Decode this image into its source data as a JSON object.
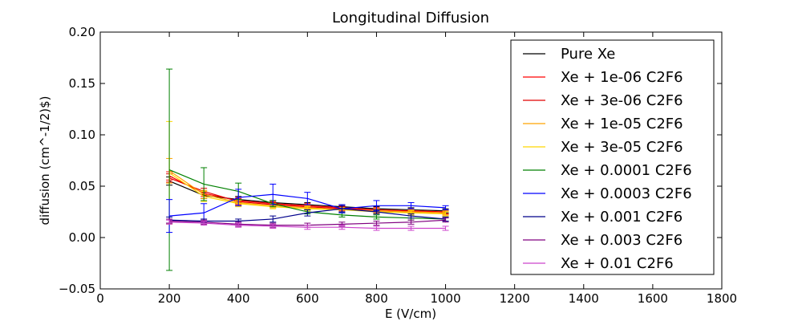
{
  "chart_data": {
    "type": "line",
    "title": "Longitudinal Diffusion",
    "xlabel": "E (V/cm)",
    "ylabel": "diffusion (cm^-1/2)$)",
    "xlim": [
      0,
      1800
    ],
    "ylim": [
      -0.05,
      0.2
    ],
    "xticks": [
      0,
      200,
      400,
      600,
      800,
      1000,
      1200,
      1400,
      1600,
      1800
    ],
    "yticks": [
      -0.05,
      0.0,
      0.05,
      0.1,
      0.15,
      0.2
    ],
    "xtick_labels": [
      "0",
      "200",
      "400",
      "600",
      "800",
      "1000",
      "1200",
      "1400",
      "1600",
      "1800"
    ],
    "ytick_labels": [
      "−0.05",
      "0.00",
      "0.05",
      "0.10",
      "0.15",
      "0.20"
    ],
    "grid": false,
    "legend_position": "upper-right",
    "x": [
      200,
      300,
      400,
      500,
      600,
      700,
      800,
      900,
      1000
    ],
    "series": [
      {
        "name": "Pure Xe",
        "color": "#000000",
        "values": [
          0.055,
          0.041,
          0.037,
          0.034,
          0.032,
          0.03,
          0.028,
          0.027,
          0.026
        ],
        "errors": [
          0.004,
          0.003,
          0.003,
          0.002,
          0.002,
          0.002,
          0.002,
          0.002,
          0.002
        ]
      },
      {
        "name": "Xe + 1e-06 C2F6",
        "color": "#ff0000",
        "values": [
          0.06,
          0.043,
          0.036,
          0.033,
          0.031,
          0.029,
          0.027,
          0.026,
          0.025
        ],
        "errors": [
          0.004,
          0.003,
          0.003,
          0.002,
          0.002,
          0.002,
          0.002,
          0.002,
          0.002
        ]
      },
      {
        "name": "Xe + 3e-06 C2F6",
        "color": "#e00000",
        "values": [
          0.058,
          0.045,
          0.035,
          0.032,
          0.03,
          0.028,
          0.026,
          0.025,
          0.024
        ],
        "errors": [
          0.004,
          0.003,
          0.003,
          0.002,
          0.002,
          0.002,
          0.002,
          0.002,
          0.002
        ]
      },
      {
        "name": "Xe + 1e-05 C2F6",
        "color": "#ffa500",
        "values": [
          0.065,
          0.042,
          0.034,
          0.031,
          0.029,
          0.027,
          0.026,
          0.025,
          0.024
        ],
        "errors": [
          0.012,
          0.004,
          0.003,
          0.002,
          0.002,
          0.002,
          0.002,
          0.002,
          0.002
        ]
      },
      {
        "name": "Xe + 3e-05 C2F6",
        "color": "#ffd700",
        "values": [
          0.063,
          0.04,
          0.033,
          0.03,
          0.028,
          0.027,
          0.025,
          0.024,
          0.023
        ],
        "errors": [
          0.05,
          0.005,
          0.003,
          0.002,
          0.002,
          0.002,
          0.002,
          0.002,
          0.002
        ]
      },
      {
        "name": "Xe + 0.0001 C2F6",
        "color": "#008000",
        "values": [
          0.066,
          0.052,
          0.045,
          0.033,
          0.025,
          0.022,
          0.02,
          0.019,
          0.018
        ],
        "errors": [
          0.098,
          0.016,
          0.008,
          0.003,
          0.002,
          0.002,
          0.002,
          0.002,
          0.002
        ]
      },
      {
        "name": "Xe + 0.0003 C2F6",
        "color": "#0000ff",
        "values": [
          0.021,
          0.024,
          0.039,
          0.042,
          0.038,
          0.028,
          0.031,
          0.031,
          0.029
        ],
        "errors": [
          0.016,
          0.009,
          0.008,
          0.01,
          0.006,
          0.004,
          0.005,
          0.003,
          0.002
        ]
      },
      {
        "name": "Xe + 0.001 C2F6",
        "color": "#00008b",
        "values": [
          0.017,
          0.016,
          0.016,
          0.018,
          0.024,
          0.028,
          0.025,
          0.021,
          0.018
        ],
        "errors": [
          0.003,
          0.002,
          0.002,
          0.003,
          0.003,
          0.003,
          0.002,
          0.002,
          0.002
        ]
      },
      {
        "name": "Xe + 0.003 C2F6",
        "color": "#800080",
        "values": [
          0.016,
          0.015,
          0.013,
          0.012,
          0.012,
          0.013,
          0.014,
          0.015,
          0.017
        ],
        "errors": [
          0.002,
          0.002,
          0.002,
          0.002,
          0.002,
          0.002,
          0.002,
          0.002,
          0.002
        ]
      },
      {
        "name": "Xe + 0.01 C2F6",
        "color": "#cc44cc",
        "values": [
          0.015,
          0.014,
          0.012,
          0.011,
          0.01,
          0.01,
          0.009,
          0.009,
          0.009
        ],
        "errors": [
          0.002,
          0.002,
          0.002,
          0.002,
          0.002,
          0.002,
          0.002,
          0.002,
          0.002
        ]
      }
    ]
  }
}
